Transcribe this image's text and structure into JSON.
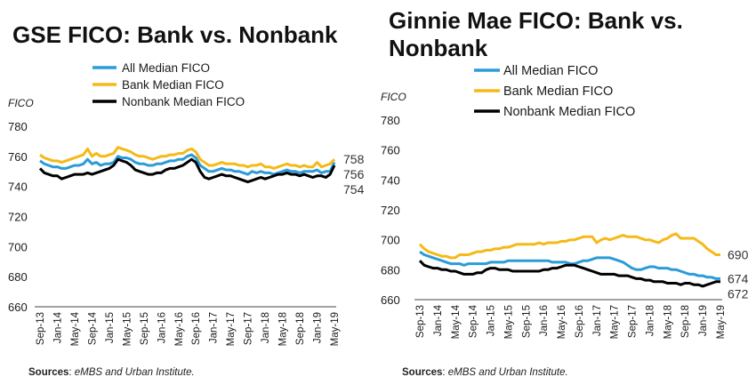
{
  "colors": {
    "all": "#2b9cd8",
    "bank": "#f5b918",
    "nonbank": "#000000",
    "text": "#1a1a1a"
  },
  "chart_data": [
    {
      "type": "line",
      "title": "GSE FICO: Bank vs. Nonbank",
      "ylabel": "FICO",
      "xlabel": "",
      "ylim": [
        660,
        780
      ],
      "yticks": [
        660,
        680,
        700,
        720,
        740,
        760,
        780
      ],
      "grid": false,
      "legend_position": "top",
      "x_tick_labels": [
        "Sep-13",
        "Jan-14",
        "May-14",
        "Sep-14",
        "Jan-15",
        "May-15",
        "Sep-15",
        "Jan-16",
        "May-16",
        "Sep-16",
        "Jan-17",
        "May-17",
        "Sep-17",
        "Jan-18",
        "May-18",
        "Sep-18",
        "Jan-19",
        "May-19"
      ],
      "series": [
        {
          "name": "All Median FICO",
          "color_key": "all",
          "end_label": "756",
          "values": [
            757,
            755,
            754,
            753,
            753,
            752,
            752,
            753,
            754,
            754,
            755,
            758,
            755,
            756,
            754,
            755,
            755,
            756,
            760,
            759,
            759,
            758,
            756,
            755,
            755,
            754,
            754,
            755,
            755,
            756,
            757,
            757,
            758,
            758,
            760,
            761,
            759,
            754,
            752,
            750,
            750,
            751,
            752,
            751,
            751,
            750,
            750,
            749,
            748,
            750,
            749,
            750,
            749,
            749,
            748,
            749,
            750,
            751,
            750,
            750,
            749,
            750,
            750,
            750,
            751,
            749,
            750,
            750,
            756
          ]
        },
        {
          "name": "Bank Median FICO",
          "color_key": "bank",
          "end_label": "758",
          "values": [
            761,
            759,
            758,
            757,
            757,
            756,
            757,
            758,
            759,
            760,
            761,
            765,
            760,
            762,
            760,
            760,
            761,
            762,
            766,
            765,
            764,
            763,
            761,
            760,
            760,
            759,
            758,
            759,
            760,
            760,
            761,
            761,
            762,
            762,
            764,
            765,
            763,
            758,
            756,
            754,
            754,
            755,
            756,
            755,
            755,
            755,
            754,
            754,
            753,
            754,
            754,
            755,
            753,
            753,
            752,
            753,
            754,
            755,
            754,
            754,
            753,
            754,
            753,
            753,
            756,
            753,
            754,
            755,
            758
          ]
        },
        {
          "name": "Nonbank Median FICO",
          "color_key": "nonbank",
          "end_label": "754",
          "values": [
            752,
            749,
            748,
            747,
            747,
            745,
            746,
            747,
            748,
            748,
            748,
            749,
            748,
            749,
            750,
            751,
            752,
            754,
            758,
            757,
            756,
            754,
            751,
            750,
            749,
            748,
            748,
            749,
            749,
            751,
            752,
            752,
            753,
            754,
            756,
            758,
            756,
            750,
            746,
            745,
            746,
            747,
            748,
            747,
            747,
            746,
            745,
            744,
            743,
            744,
            745,
            746,
            745,
            746,
            747,
            748,
            748,
            749,
            748,
            748,
            747,
            748,
            747,
            746,
            747,
            747,
            746,
            748,
            754
          ]
        }
      ]
    },
    {
      "type": "line",
      "title": "Ginnie Mae FICO: Bank vs. Nonbank",
      "ylabel": "FICO",
      "xlabel": "",
      "ylim": [
        660,
        780
      ],
      "yticks": [
        660,
        680,
        700,
        720,
        740,
        760,
        780
      ],
      "grid": false,
      "legend_position": "top",
      "x_tick_labels": [
        "Sep-13",
        "Jan-14",
        "May-14",
        "Sep-14",
        "Jan-15",
        "May-15",
        "Sep-15",
        "Jan-16",
        "May-16",
        "Sep-16",
        "Jan-17",
        "May-17",
        "Sep-17",
        "Jan-18",
        "May-18",
        "Sep-18",
        "Jan-19",
        "May-19"
      ],
      "series": [
        {
          "name": "All Median FICO",
          "color_key": "all",
          "end_label": "674",
          "values": [
            692,
            690,
            689,
            688,
            687,
            686,
            685,
            684,
            684,
            684,
            683,
            684,
            684,
            684,
            684,
            684,
            685,
            685,
            685,
            685,
            686,
            686,
            686,
            686,
            686,
            686,
            686,
            686,
            686,
            686,
            685,
            685,
            685,
            685,
            684,
            684,
            685,
            686,
            686,
            687,
            688,
            688,
            688,
            688,
            687,
            686,
            685,
            683,
            681,
            680,
            680,
            681,
            682,
            682,
            681,
            681,
            681,
            680,
            680,
            679,
            678,
            677,
            677,
            676,
            676,
            675,
            675,
            674,
            674
          ]
        },
        {
          "name": "Bank Median FICO",
          "color_key": "bank",
          "end_label": "690",
          "values": [
            697,
            694,
            692,
            691,
            690,
            689,
            689,
            688,
            688,
            690,
            690,
            690,
            691,
            692,
            692,
            693,
            693,
            694,
            694,
            695,
            695,
            696,
            697,
            697,
            697,
            697,
            697,
            698,
            697,
            698,
            698,
            698,
            699,
            699,
            700,
            700,
            701,
            702,
            702,
            702,
            698,
            700,
            701,
            700,
            701,
            702,
            703,
            702,
            702,
            702,
            701,
            700,
            700,
            699,
            698,
            700,
            701,
            703,
            704,
            701,
            701,
            701,
            701,
            699,
            697,
            694,
            692,
            690,
            690
          ]
        },
        {
          "name": "Nonbank Median FICO",
          "color_key": "nonbank",
          "end_label": "672",
          "values": [
            686,
            683,
            682,
            681,
            681,
            680,
            680,
            679,
            679,
            678,
            677,
            677,
            677,
            678,
            678,
            680,
            681,
            681,
            680,
            680,
            680,
            679,
            679,
            679,
            679,
            679,
            679,
            679,
            680,
            680,
            681,
            681,
            682,
            683,
            683,
            683,
            682,
            681,
            680,
            679,
            678,
            677,
            677,
            677,
            677,
            676,
            676,
            676,
            675,
            674,
            674,
            673,
            673,
            672,
            672,
            672,
            671,
            671,
            671,
            670,
            671,
            671,
            670,
            670,
            669,
            670,
            671,
            672,
            672
          ]
        }
      ]
    }
  ],
  "footer": {
    "left": {
      "label": "Sources",
      "text": "eMBS and Urban Institute."
    },
    "right": {
      "label": "Sources",
      "text": "eMBS and Urban Institute."
    }
  }
}
